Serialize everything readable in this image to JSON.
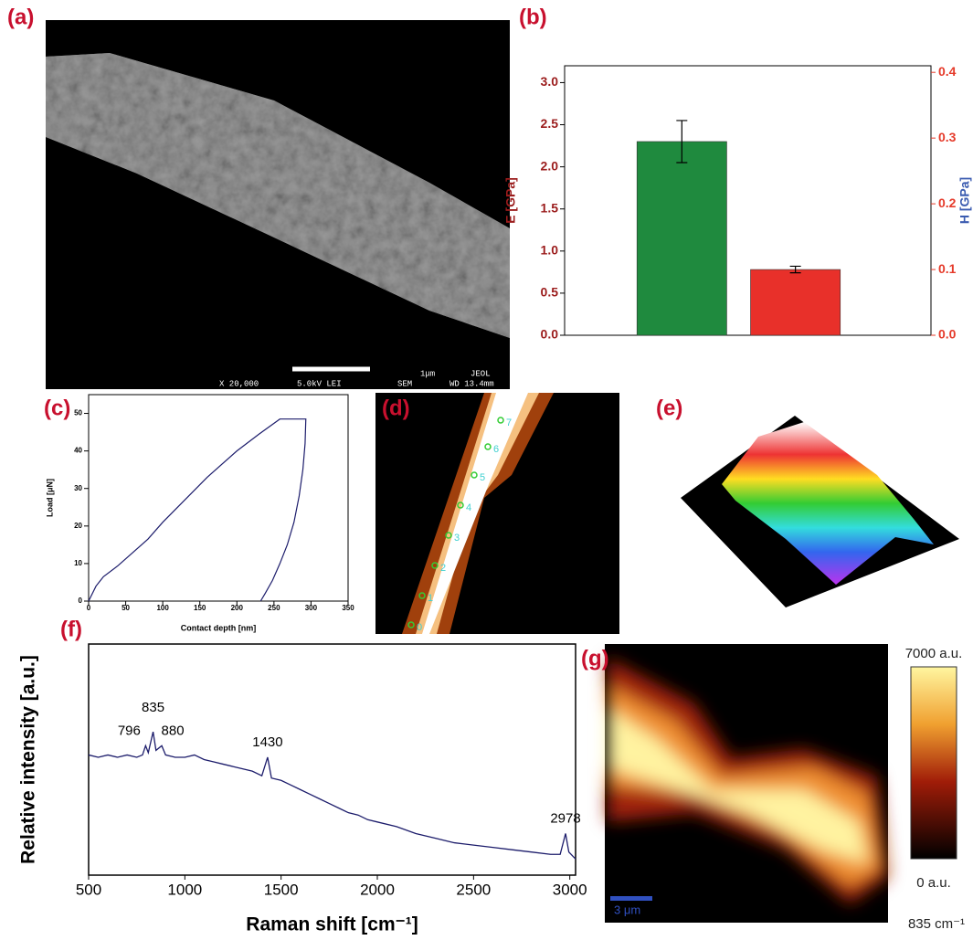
{
  "panel_labels": [
    "(a)",
    "(b)",
    "(c)",
    "(d)",
    "(e)",
    "(f)",
    "(g)"
  ],
  "sem": {
    "magnification": "X 20,000",
    "voltage": "5.0kV LEI",
    "scale": "1μm",
    "maker": "JEOL",
    "mode": "SEM",
    "wd": "WD 13.4mm"
  },
  "afm_labels": [
    "0",
    "1",
    "2",
    "3",
    "4",
    "5",
    "6",
    "7"
  ],
  "raman_map": {
    "max_label": "7000 a.u.",
    "min_label": "0 a.u.",
    "band_label": "835 cm⁻¹",
    "scale_bar": "3 μm"
  },
  "chart_data": [
    {
      "type": "bar",
      "categories": [
        null,
        null
      ],
      "ylabel": "E [GPa]",
      "y2label": "H [GPa]",
      "series": [
        {
          "color": "#1f8a3e",
          "values": [
            2.3,
            null
          ],
          "errors": [
            0.25,
            null
          ]
        },
        {
          "color": "#e8302a",
          "axis": "y2",
          "values": [
            null,
            0.1
          ],
          "errors": [
            null,
            0.005
          ]
        }
      ],
      "ylim": [
        0,
        3.2
      ],
      "yticks": [
        {
          "value": 0,
          "label": "0.0"
        },
        0.5,
        {
          "value": 1,
          "label": "1.0"
        },
        1.5,
        {
          "value": 2,
          "label": "2.0"
        },
        2.5,
        {
          "value": 3,
          "label": "3.0"
        }
      ],
      "y2lim": [
        0,
        0.41
      ],
      "y2ticks": [
        {
          "value": 0,
          "label": "0.0"
        },
        0.1,
        0.2,
        0.3,
        0.4
      ],
      "grid": false
    },
    {
      "type": "line",
      "xlabel": "Contact depth [nm]",
      "ylabel": "Load [μN]",
      "x": [
        0,
        10,
        20,
        40,
        60,
        80,
        100,
        130,
        160,
        200,
        230,
        258,
        293,
        292,
        289,
        284,
        277,
        268,
        258,
        248,
        238,
        232
      ],
      "series": [
        {
          "color": "#1c1c6b",
          "values": [
            0,
            4,
            6.5,
            9.5,
            13,
            16.5,
            21,
            27,
            33,
            40,
            44.5,
            48.5,
            48.5,
            42,
            35,
            28,
            21,
            15,
            10,
            5.5,
            2,
            0
          ]
        }
      ],
      "xlim": [
        0,
        350
      ],
      "xticks": [
        0,
        50,
        100,
        150,
        200,
        250,
        300,
        350
      ],
      "ylim": [
        0,
        55
      ],
      "yticks": [
        0,
        10,
        20,
        30,
        40,
        50
      ],
      "grid": false
    },
    {
      "type": "line",
      "xlabel": "Raman shift [cm⁻¹]",
      "ylabel": "Relative intensity [a.u.]",
      "x": [
        500,
        550,
        600,
        650,
        700,
        750,
        780,
        796,
        810,
        835,
        850,
        880,
        900,
        950,
        1000,
        1050,
        1100,
        1150,
        1200,
        1250,
        1300,
        1350,
        1400,
        1430,
        1450,
        1500,
        1550,
        1600,
        1650,
        1700,
        1750,
        1800,
        1850,
        1900,
        1950,
        2000,
        2100,
        2200,
        2300,
        2400,
        2500,
        2600,
        2700,
        2800,
        2900,
        2950,
        2978,
        2995,
        3030
      ],
      "series": [
        {
          "color": "#1c1c6b",
          "values": [
            52,
            51,
            52,
            51,
            52,
            51,
            52,
            56,
            53,
            62,
            54,
            56,
            52,
            51,
            51,
            52,
            50,
            49,
            48,
            47,
            46,
            45,
            43,
            51,
            42,
            41,
            39,
            37,
            35,
            33,
            31,
            29,
            27,
            26,
            24,
            23,
            21,
            18,
            16,
            14,
            13,
            12,
            11,
            10,
            9,
            9,
            18,
            10,
            7
          ]
        }
      ],
      "annotations": [
        796,
        835,
        880,
        1430,
        2978
      ],
      "xlim": [
        500,
        3030
      ],
      "xticks": [
        500,
        1000,
        1500,
        2000,
        2500,
        3000
      ],
      "ylim": [
        0,
        100
      ],
      "grid": false
    }
  ]
}
